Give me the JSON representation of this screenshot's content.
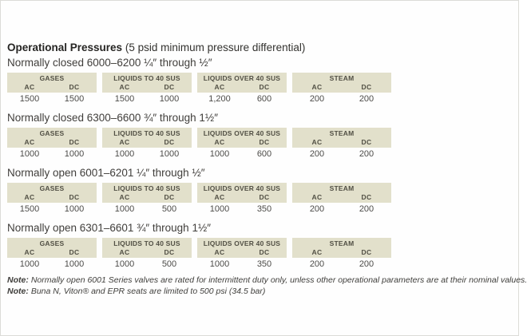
{
  "page": {
    "title_bold": "Operational Pressures",
    "title_suffix": "(5 psid minimum pressure differential)"
  },
  "column_groups": [
    {
      "label": "GASES",
      "sub": [
        "AC",
        "DC"
      ]
    },
    {
      "label": "LIQUIDS TO 40 SUS",
      "sub": [
        "AC",
        "DC"
      ]
    },
    {
      "label": "LIQUIDS OVER 40 SUS",
      "sub": [
        "AC",
        "DC"
      ]
    },
    {
      "label": "STEAM",
      "sub": [
        "AC",
        "DC"
      ]
    }
  ],
  "sections": [
    {
      "heading": "Normally closed 6000–6200 ¼″ through ½″",
      "values": [
        "1500",
        "1500",
        "1500",
        "1000",
        "1,200",
        "600",
        "200",
        "200"
      ]
    },
    {
      "heading": "Normally closed 6300–6600 ¾″ through 1½″",
      "values": [
        "1000",
        "1000",
        "1000",
        "1000",
        "1000",
        "600",
        "200",
        "200"
      ]
    },
    {
      "heading": "Normally open 6001–6201 ¼″ through ½″",
      "values": [
        "1500",
        "1000",
        "1000",
        "500",
        "1000",
        "350",
        "200",
        "200"
      ]
    },
    {
      "heading": "Normally open 6301–6601 ¾″ through 1½″",
      "values": [
        "1000",
        "1000",
        "1000",
        "500",
        "1000",
        "350",
        "200",
        "200"
      ]
    }
  ],
  "notes": [
    {
      "label": "Note:",
      "text": "Normally open 6001 Series valves are rated for intermittent duty only, unless other operational parameters are at their nominal values."
    },
    {
      "label": "Note:",
      "text": "Buna N, Viton® and EPR seats are limited to 500 psi (34.5 bar)"
    }
  ],
  "colors": {
    "header_bg": "#e2e0cb",
    "header_text": "#514f44",
    "body_text": "#4c4b48",
    "heading_text": "#403e3b"
  }
}
